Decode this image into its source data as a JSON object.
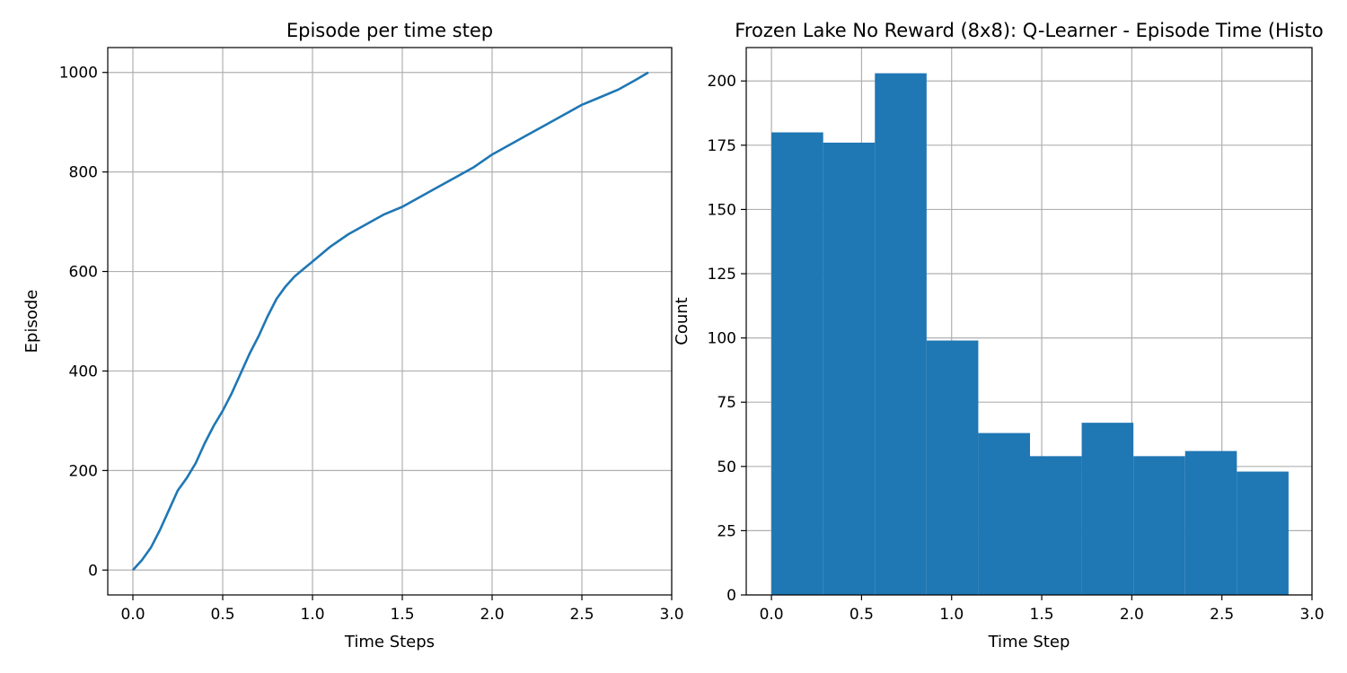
{
  "chart_data": [
    {
      "type": "line",
      "title": "Episode per time step",
      "xlabel": "Time Steps",
      "ylabel": "Episode",
      "xlim": [
        -0.14,
        3.0
      ],
      "ylim": [
        -50,
        1050
      ],
      "xticks": [
        "0.0",
        "0.5",
        "1.0",
        "1.5",
        "2.0",
        "2.5",
        "3.0"
      ],
      "yticks": [
        "0",
        "200",
        "400",
        "600",
        "800",
        "1000"
      ],
      "grid": true,
      "color": "#1f77b4",
      "series": [
        {
          "x": [
            0.0,
            0.05,
            0.1,
            0.15,
            0.2,
            0.25,
            0.3,
            0.35,
            0.4,
            0.45,
            0.5,
            0.55,
            0.6,
            0.65,
            0.7,
            0.75,
            0.8,
            0.85,
            0.9,
            0.95,
            1.0,
            1.05,
            1.1,
            1.2,
            1.3,
            1.4,
            1.5,
            1.6,
            1.7,
            1.8,
            1.9,
            2.0,
            2.1,
            2.2,
            2.3,
            2.4,
            2.5,
            2.6,
            2.7,
            2.8,
            2.87
          ],
          "y": [
            0,
            20,
            45,
            80,
            120,
            160,
            185,
            215,
            255,
            290,
            320,
            355,
            395,
            435,
            470,
            510,
            545,
            570,
            590,
            605,
            620,
            635,
            650,
            675,
            695,
            715,
            730,
            750,
            770,
            790,
            810,
            835,
            855,
            875,
            895,
            915,
            935,
            950,
            965,
            985,
            1000
          ]
        }
      ]
    },
    {
      "type": "bar",
      "title": "Frozen Lake No Reward (8x8): Q-Learner - Episode Time (Histo",
      "xlabel": "Time Step",
      "ylabel": "Count",
      "xlim": [
        -0.14,
        3.0
      ],
      "ylim": [
        0,
        213
      ],
      "xticks": [
        "0.0",
        "0.5",
        "1.0",
        "1.5",
        "2.0",
        "2.5",
        "3.0"
      ],
      "yticks": [
        "0",
        "25",
        "50",
        "75",
        "100",
        "125",
        "150",
        "175",
        "200"
      ],
      "grid": true,
      "color": "#1f77b4",
      "bin_edges": [
        0.0,
        0.287,
        0.574,
        0.861,
        1.148,
        1.435,
        1.722,
        2.009,
        2.296,
        2.583,
        2.87
      ],
      "values": [
        180,
        176,
        203,
        99,
        63,
        54,
        67,
        54,
        56,
        48
      ]
    }
  ]
}
